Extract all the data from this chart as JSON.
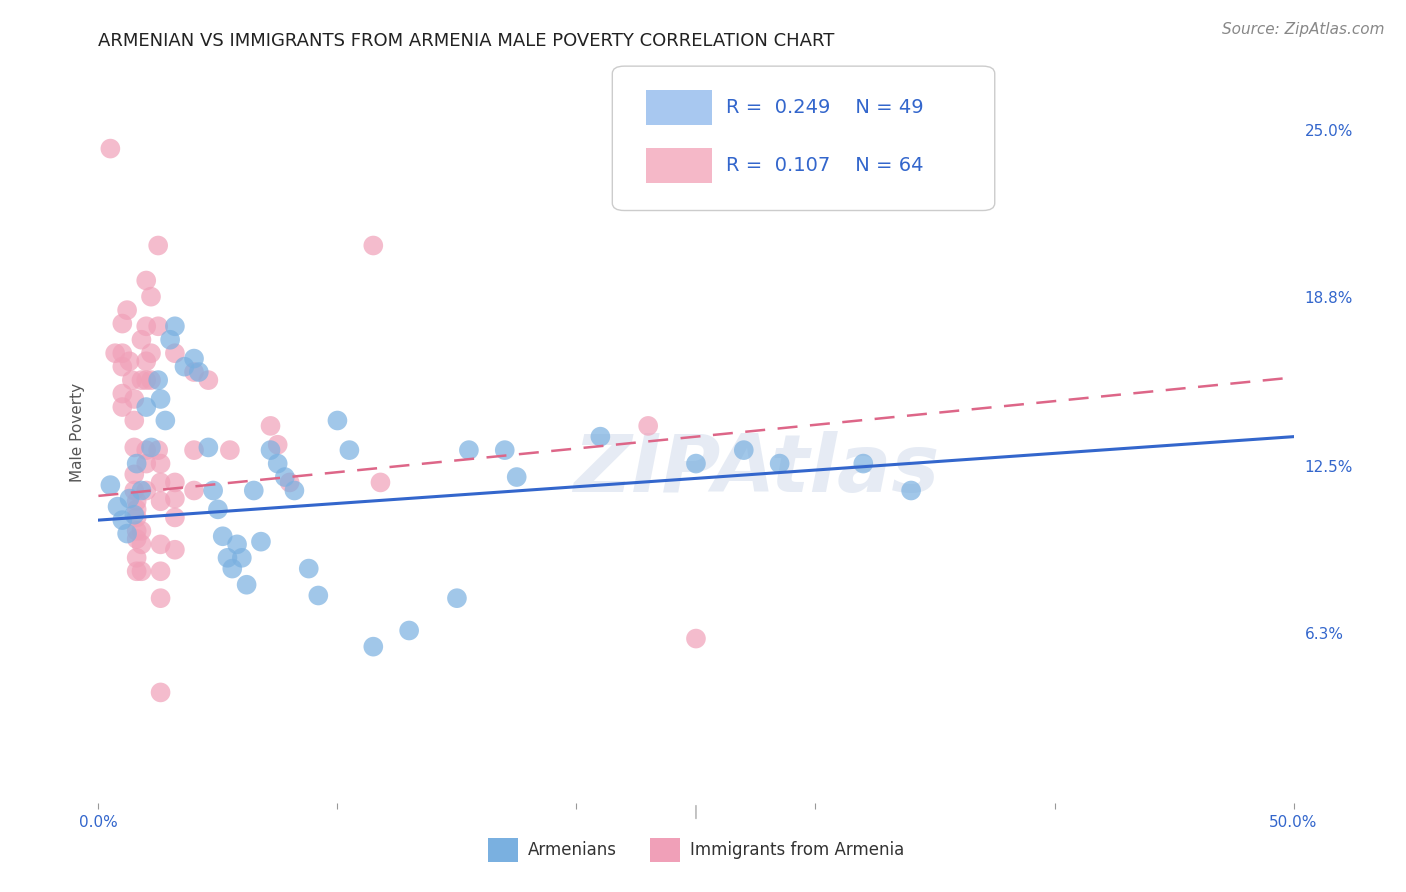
{
  "title": "ARMENIAN VS IMMIGRANTS FROM ARMENIA MALE POVERTY CORRELATION CHART",
  "source": "Source: ZipAtlas.com",
  "ylabel": "Male Poverty",
  "xlim": [
    0.0,
    0.5
  ],
  "ylim": [
    0.0,
    0.275
  ],
  "ytick_labels": [
    "6.3%",
    "12.5%",
    "18.8%",
    "25.0%"
  ],
  "ytick_positions": [
    0.063,
    0.125,
    0.188,
    0.25
  ],
  "watermark": "ZIPAtlas",
  "blue_color": "#a8c8f0",
  "pink_color": "#f5b8c8",
  "blue_dot_color": "#7ab0e0",
  "pink_dot_color": "#f0a0b8",
  "blue_line_color": "#3366cc",
  "pink_line_color": "#dd6688",
  "blue_scatter": [
    [
      0.005,
      0.118
    ],
    [
      0.008,
      0.11
    ],
    [
      0.01,
      0.105
    ],
    [
      0.012,
      0.1
    ],
    [
      0.013,
      0.113
    ],
    [
      0.015,
      0.107
    ],
    [
      0.016,
      0.126
    ],
    [
      0.018,
      0.116
    ],
    [
      0.02,
      0.147
    ],
    [
      0.022,
      0.132
    ],
    [
      0.025,
      0.157
    ],
    [
      0.026,
      0.15
    ],
    [
      0.028,
      0.142
    ],
    [
      0.03,
      0.172
    ],
    [
      0.032,
      0.177
    ],
    [
      0.036,
      0.162
    ],
    [
      0.04,
      0.165
    ],
    [
      0.042,
      0.16
    ],
    [
      0.046,
      0.132
    ],
    [
      0.048,
      0.116
    ],
    [
      0.05,
      0.109
    ],
    [
      0.052,
      0.099
    ],
    [
      0.054,
      0.091
    ],
    [
      0.056,
      0.087
    ],
    [
      0.058,
      0.096
    ],
    [
      0.06,
      0.091
    ],
    [
      0.062,
      0.081
    ],
    [
      0.065,
      0.116
    ],
    [
      0.068,
      0.097
    ],
    [
      0.072,
      0.131
    ],
    [
      0.075,
      0.126
    ],
    [
      0.078,
      0.121
    ],
    [
      0.082,
      0.116
    ],
    [
      0.088,
      0.087
    ],
    [
      0.092,
      0.077
    ],
    [
      0.1,
      0.142
    ],
    [
      0.105,
      0.131
    ],
    [
      0.115,
      0.058
    ],
    [
      0.13,
      0.064
    ],
    [
      0.15,
      0.076
    ],
    [
      0.155,
      0.131
    ],
    [
      0.17,
      0.131
    ],
    [
      0.175,
      0.121
    ],
    [
      0.21,
      0.136
    ],
    [
      0.25,
      0.126
    ],
    [
      0.27,
      0.131
    ],
    [
      0.285,
      0.126
    ],
    [
      0.32,
      0.126
    ],
    [
      0.34,
      0.116
    ]
  ],
  "pink_scatter": [
    [
      0.005,
      0.243
    ],
    [
      0.007,
      0.167
    ],
    [
      0.01,
      0.178
    ],
    [
      0.01,
      0.167
    ],
    [
      0.01,
      0.162
    ],
    [
      0.01,
      0.152
    ],
    [
      0.01,
      0.147
    ],
    [
      0.012,
      0.183
    ],
    [
      0.013,
      0.164
    ],
    [
      0.014,
      0.157
    ],
    [
      0.015,
      0.15
    ],
    [
      0.015,
      0.142
    ],
    [
      0.015,
      0.132
    ],
    [
      0.015,
      0.122
    ],
    [
      0.015,
      0.116
    ],
    [
      0.016,
      0.112
    ],
    [
      0.016,
      0.109
    ],
    [
      0.016,
      0.106
    ],
    [
      0.016,
      0.101
    ],
    [
      0.016,
      0.098
    ],
    [
      0.016,
      0.091
    ],
    [
      0.016,
      0.086
    ],
    [
      0.018,
      0.172
    ],
    [
      0.018,
      0.157
    ],
    [
      0.018,
      0.101
    ],
    [
      0.018,
      0.096
    ],
    [
      0.018,
      0.086
    ],
    [
      0.02,
      0.194
    ],
    [
      0.02,
      0.177
    ],
    [
      0.02,
      0.164
    ],
    [
      0.02,
      0.157
    ],
    [
      0.02,
      0.131
    ],
    [
      0.02,
      0.126
    ],
    [
      0.02,
      0.116
    ],
    [
      0.022,
      0.188
    ],
    [
      0.022,
      0.167
    ],
    [
      0.022,
      0.157
    ],
    [
      0.025,
      0.207
    ],
    [
      0.025,
      0.177
    ],
    [
      0.025,
      0.131
    ],
    [
      0.026,
      0.126
    ],
    [
      0.026,
      0.119
    ],
    [
      0.026,
      0.112
    ],
    [
      0.026,
      0.096
    ],
    [
      0.026,
      0.086
    ],
    [
      0.026,
      0.076
    ],
    [
      0.026,
      0.041
    ],
    [
      0.032,
      0.167
    ],
    [
      0.032,
      0.119
    ],
    [
      0.032,
      0.113
    ],
    [
      0.032,
      0.106
    ],
    [
      0.032,
      0.094
    ],
    [
      0.04,
      0.16
    ],
    [
      0.04,
      0.131
    ],
    [
      0.04,
      0.116
    ],
    [
      0.046,
      0.157
    ],
    [
      0.055,
      0.131
    ],
    [
      0.072,
      0.14
    ],
    [
      0.075,
      0.133
    ],
    [
      0.08,
      0.119
    ],
    [
      0.115,
      0.207
    ],
    [
      0.118,
      0.119
    ],
    [
      0.23,
      0.14
    ],
    [
      0.25,
      0.061
    ]
  ],
  "blue_line_x": [
    0.0,
    0.5
  ],
  "blue_line_y_start": 0.105,
  "blue_line_y_end": 0.136,
  "pink_line_x": [
    0.0,
    0.5
  ],
  "pink_line_y_start": 0.114,
  "pink_line_y_end": 0.158,
  "background_color": "#ffffff",
  "grid_color": "#c8d4e8",
  "legend_text_color": "#3366cc",
  "title_fontsize": 13,
  "axis_label_fontsize": 11,
  "tick_fontsize": 11,
  "source_fontsize": 11
}
